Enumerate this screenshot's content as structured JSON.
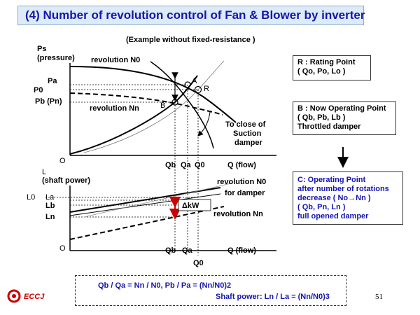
{
  "title": "(4) Number of revolution control of Fan & Blower by inverter",
  "subtitle": "(Example without  fixed-resistance )",
  "upper_chart": {
    "y_axis_label_1": "Ps",
    "y_axis_label_2": "(pressure)",
    "x_axis_label": "Q (flow)",
    "origin": "O",
    "y_ticks": [
      "Pa",
      "P0",
      "Pb (Pn)"
    ],
    "x_ticks": [
      "Qb",
      "Qa",
      "Q0"
    ],
    "curve_N0": "revolution N0",
    "curve_Nn": "revolution Nn",
    "point_A": "A",
    "point_R": "R",
    "point_B": "B",
    "damper_note_1": "To close of",
    "damper_note_2": "Suction",
    "damper_note_3": "damper"
  },
  "lower_chart": {
    "y_axis_label_1": "L",
    "y_axis_label_2": "(shaft power)",
    "x_axis_label": "Q (flow)",
    "origin": "O",
    "y_ticks": [
      "L0",
      "La",
      "Lb",
      "Ln"
    ],
    "x_ticks": [
      "Qb",
      "Qa",
      "Q0"
    ],
    "curve_N0_1": "revolution N0",
    "curve_N0_2": "for damper",
    "curve_Nn": "revolution Nn",
    "delta_label": "ΔkW"
  },
  "box_R": {
    "line1": "R :  Rating Point",
    "line2": "( Qo, Po, Lo )"
  },
  "box_B": {
    "line1": "B :  Now Operating Point",
    "line2": "( Qb, Pb, Lb )",
    "line3": "Throttled damper"
  },
  "arrow_down": "↓",
  "box_C": {
    "line1": "C: Operating Point",
    "line2": "after  number of rotations",
    "line3": "decrease ( No→Nn )",
    "line4": "( Qb, Pn, Ln )",
    "line5": " full opened damper"
  },
  "formula": {
    "line1": "Qb / Qa = Nn / N0,    Pb / Pa = (Nn/N0)2",
    "line2": "Shaft  power: Ln / La = (Nn/N0)3"
  },
  "footer": {
    "logo_text": "ECCJ",
    "page_number": "51"
  },
  "colors": {
    "title_text": "#1515b0",
    "title_bg": "#dcebf7",
    "arrow": "#cc0000",
    "logo": "#cc0000"
  }
}
